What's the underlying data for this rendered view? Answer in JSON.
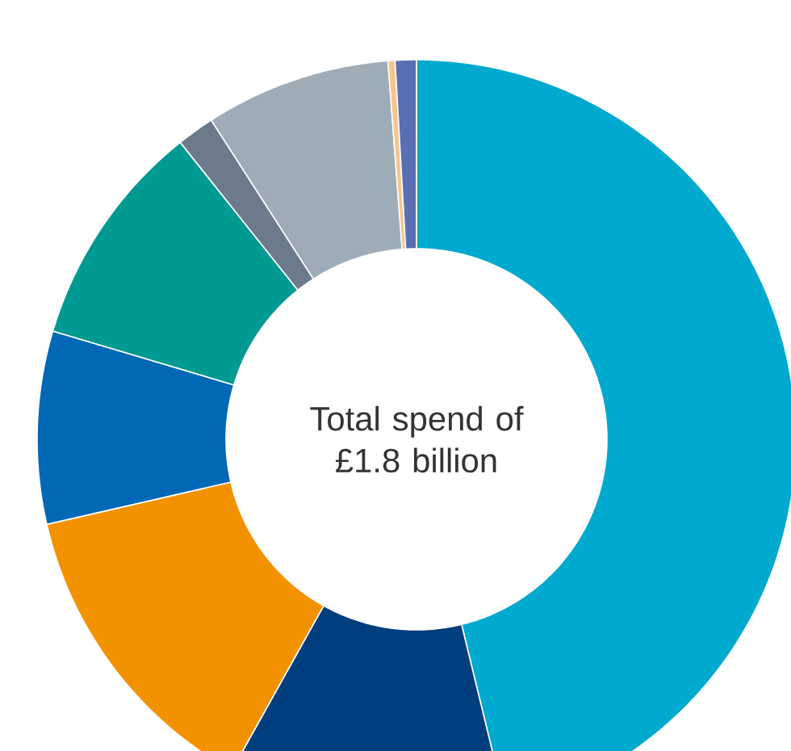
{
  "chart_data": {
    "type": "donut",
    "title": "Total spend of £1.8 billion",
    "categories": [
      null,
      null,
      null,
      null,
      null,
      null,
      null,
      null,
      null
    ],
    "values": [
      46.2,
      11.9,
      13.3,
      8.2,
      9.7,
      1.6,
      7.9,
      0.3,
      0.9
    ],
    "colors": [
      "#00a9ce",
      "#003e7e",
      "#f39200",
      "#0068b4",
      "#009a93",
      "#6b7b8c",
      "#9eacb8",
      "#f5c58f",
      "#5a6fb3"
    ]
  }
}
